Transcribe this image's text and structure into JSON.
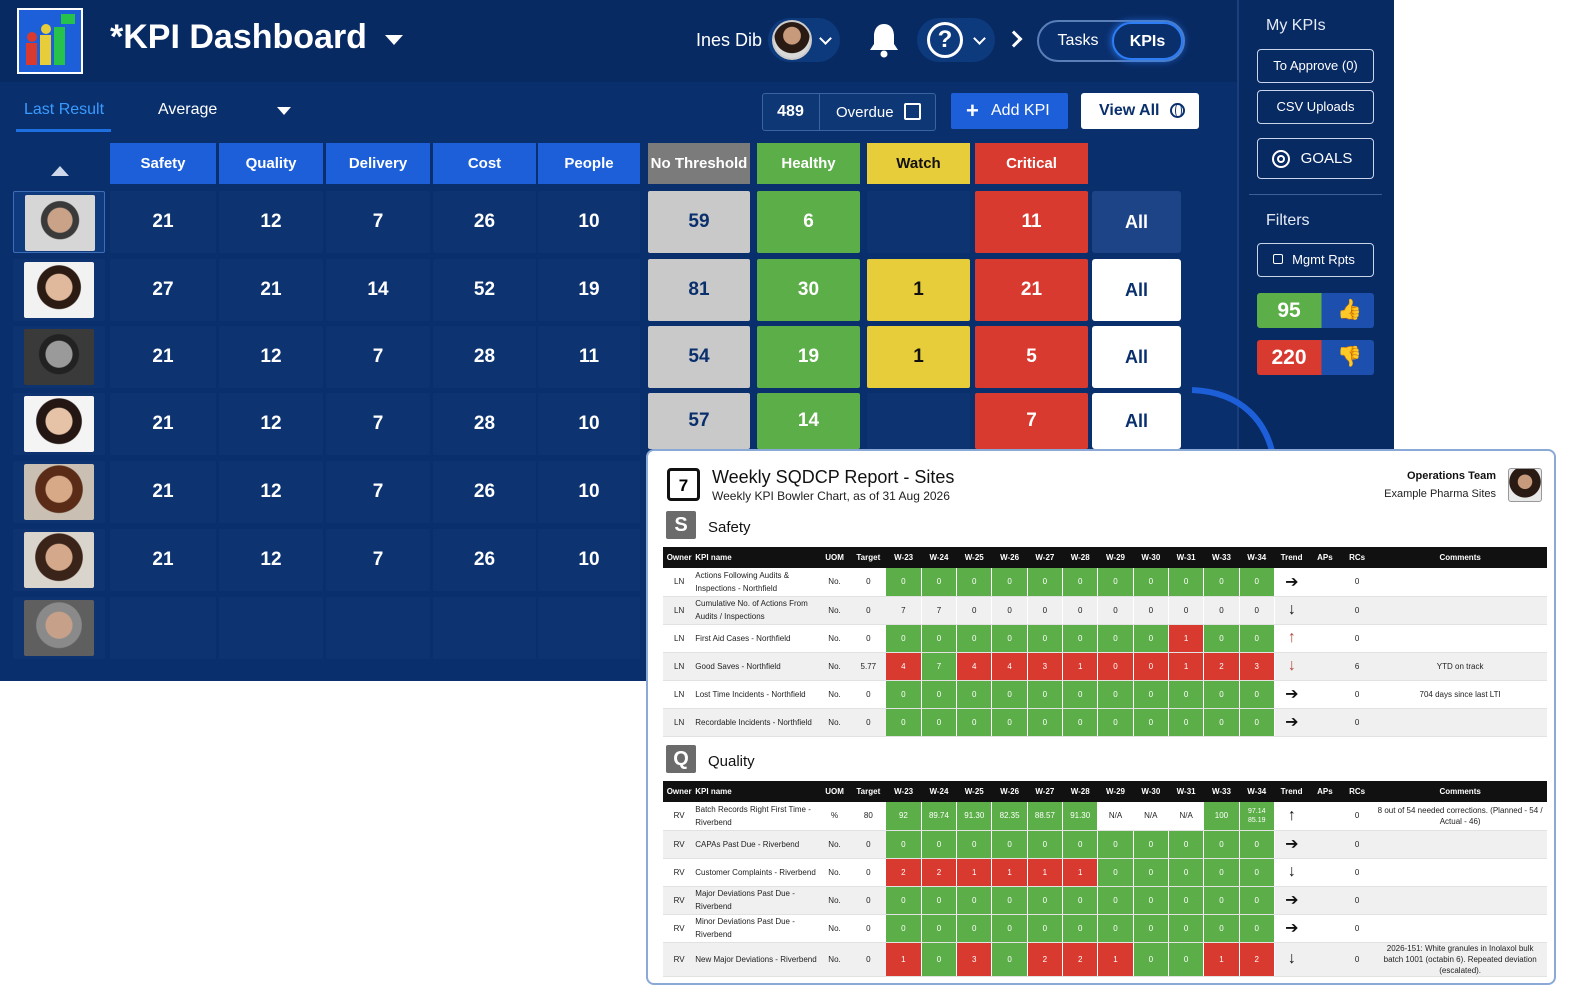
{
  "header": {
    "title": "KPI Dashboard",
    "user_name": "Ines Dib",
    "tab_tasks": "Tasks",
    "tab_kpis": "KPIs"
  },
  "views": {
    "last_result": "Last Result",
    "average": "Average"
  },
  "toolbar": {
    "overdue_count": "489",
    "overdue_label": "Overdue",
    "add_kpi": "Add KPI",
    "view_all": "View All"
  },
  "columns": [
    "Safety",
    "Quality",
    "Delivery",
    "Cost",
    "People",
    "No Threshold",
    "Healthy",
    "Watch",
    "Critical"
  ],
  "colors": {
    "category": "#1d5fd9",
    "no_threshold": "#c9c9c9",
    "healthy": "#5cae48",
    "watch": "#e7cd3a",
    "critical": "#d93a30",
    "navy": "#0a2f6d"
  },
  "rows": [
    {
      "values": [
        "21",
        "12",
        "7",
        "26",
        "10",
        "59",
        "6",
        "",
        "11"
      ],
      "all": "All"
    },
    {
      "values": [
        "27",
        "21",
        "14",
        "52",
        "19",
        "81",
        "30",
        "1",
        "21"
      ],
      "all": "All"
    },
    {
      "values": [
        "21",
        "12",
        "7",
        "28",
        "11",
        "54",
        "19",
        "1",
        "5"
      ],
      "all": "All"
    },
    {
      "values": [
        "21",
        "12",
        "7",
        "28",
        "10",
        "57",
        "14",
        "",
        "7"
      ],
      "all": "All"
    },
    {
      "values": [
        "21",
        "12",
        "7",
        "26",
        "10"
      ]
    },
    {
      "values": [
        "21",
        "12",
        "7",
        "26",
        "10"
      ]
    },
    {
      "values": []
    }
  ],
  "panel": {
    "my_kpis": "My KPIs",
    "to_approve": "To Approve (0)",
    "csv_uploads": "CSV Uploads",
    "goals": "GOALS",
    "filters": "Filters",
    "mgmt_rpts": "Mgmt Rpts",
    "thumbs_up": "95",
    "thumbs_down": "220"
  },
  "report": {
    "calendar_day": "7",
    "title": "Weekly SQDCP Report - Sites",
    "subtitle": "Weekly KPI Bowler Chart, as of 31 Aug 2026",
    "team": "Operations Team",
    "site": "Example Pharma Sites",
    "columns": [
      "Owner",
      "KPI name",
      "UOM",
      "Target",
      "W-23",
      "W-24",
      "W-25",
      "W-26",
      "W-27",
      "W-28",
      "W-29",
      "W-30",
      "W-31",
      "W-33",
      "W-34",
      "Trend",
      "APs",
      "RCs",
      "Comments"
    ],
    "sections": [
      {
        "badge": "S",
        "name": "Safety",
        "rows": [
          {
            "owner": "LN",
            "kpi": "Actions Following Audits & Inspections - Northfield",
            "uom": "No.",
            "target": "0",
            "weeks": [
              "0",
              "0",
              "0",
              "0",
              "0",
              "0",
              "0",
              "0",
              "0",
              "0",
              "0"
            ],
            "colors": [
              "g",
              "g",
              "g",
              "g",
              "g",
              "g",
              "g",
              "g",
              "g",
              "g",
              "g"
            ],
            "trend": "right",
            "aps": "",
            "rcs": "0",
            "comment": ""
          },
          {
            "owner": "LN",
            "kpi": "Cumulative No. of Actions From Audits / Inspections",
            "uom": "No.",
            "target": "0",
            "weeks": [
              "7",
              "7",
              "0",
              "0",
              "0",
              "0",
              "0",
              "0",
              "0",
              "0",
              "0"
            ],
            "colors": [
              "n",
              "n",
              "n",
              "n",
              "n",
              "n",
              "n",
              "n",
              "n",
              "n",
              "n"
            ],
            "trend": "down",
            "aps": "",
            "rcs": "0",
            "comment": ""
          },
          {
            "owner": "LN",
            "kpi": "First Aid Cases - Northfield",
            "uom": "No.",
            "target": "0",
            "weeks": [
              "0",
              "0",
              "0",
              "0",
              "0",
              "0",
              "0",
              "0",
              "1",
              "0",
              "0"
            ],
            "colors": [
              "g",
              "g",
              "g",
              "g",
              "g",
              "g",
              "g",
              "g",
              "r",
              "g",
              "g"
            ],
            "trend": "up-red",
            "aps": "",
            "rcs": "0",
            "comment": ""
          },
          {
            "owner": "LN",
            "kpi": "Good Saves - Northfield",
            "uom": "No.",
            "target": "5.77",
            "weeks": [
              "4",
              "7",
              "4",
              "4",
              "3",
              "1",
              "0",
              "0",
              "1",
              "2",
              "3"
            ],
            "colors": [
              "r",
              "g",
              "r",
              "r",
              "r",
              "r",
              "r",
              "r",
              "r",
              "r",
              "r"
            ],
            "trend": "down-red",
            "aps": "",
            "rcs": "6",
            "comment": "YTD on track"
          },
          {
            "owner": "LN",
            "kpi": "Lost Time Incidents - Northfield",
            "uom": "No.",
            "target": "0",
            "weeks": [
              "0",
              "0",
              "0",
              "0",
              "0",
              "0",
              "0",
              "0",
              "0",
              "0",
              "0"
            ],
            "colors": [
              "g",
              "g",
              "g",
              "g",
              "g",
              "g",
              "g",
              "g",
              "g",
              "g",
              "g"
            ],
            "trend": "right",
            "aps": "",
            "rcs": "0",
            "comment": "704 days since last LTI"
          },
          {
            "owner": "LN",
            "kpi": "Recordable Incidents - Northfield",
            "uom": "No.",
            "target": "0",
            "weeks": [
              "0",
              "0",
              "0",
              "0",
              "0",
              "0",
              "0",
              "0",
              "0",
              "0",
              "0"
            ],
            "colors": [
              "g",
              "g",
              "g",
              "g",
              "g",
              "g",
              "g",
              "g",
              "g",
              "g",
              "g"
            ],
            "trend": "right",
            "aps": "",
            "rcs": "0",
            "comment": ""
          }
        ]
      },
      {
        "badge": "Q",
        "name": "Quality",
        "rows": [
          {
            "owner": "RV",
            "kpi": "Batch Records Right First Time - Riverbend",
            "uom": "%",
            "target": "80",
            "weeks": [
              "92",
              "89.74",
              "91.30",
              "82.35",
              "88.57",
              "91.30",
              "N/A",
              "N/A",
              "N/A",
              "100",
              "97.14 85.19"
            ],
            "colors": [
              "g",
              "g",
              "g",
              "g",
              "g",
              "g",
              "n",
              "n",
              "n",
              "g",
              "g"
            ],
            "trend": "up",
            "aps": "",
            "rcs": "0",
            "comment": "8 out of 54 needed corrections. (Planned - 54 / Actual - 46)"
          },
          {
            "owner": "RV",
            "kpi": "CAPAs Past Due - Riverbend",
            "uom": "No.",
            "target": "0",
            "weeks": [
              "0",
              "0",
              "0",
              "0",
              "0",
              "0",
              "0",
              "0",
              "0",
              "0",
              "0"
            ],
            "colors": [
              "g",
              "g",
              "g",
              "g",
              "g",
              "g",
              "g",
              "g",
              "g",
              "g",
              "g"
            ],
            "trend": "right",
            "aps": "",
            "rcs": "0",
            "comment": ""
          },
          {
            "owner": "RV",
            "kpi": "Customer Complaints - Riverbend",
            "uom": "No.",
            "target": "0",
            "weeks": [
              "2",
              "2",
              "1",
              "1",
              "1",
              "1",
              "0",
              "0",
              "0",
              "0",
              "0"
            ],
            "colors": [
              "r",
              "r",
              "r",
              "r",
              "r",
              "r",
              "g",
              "g",
              "g",
              "g",
              "g"
            ],
            "trend": "down",
            "aps": "",
            "rcs": "0",
            "comment": ""
          },
          {
            "owner": "RV",
            "kpi": "Major Deviations Past Due - Riverbend",
            "uom": "No.",
            "target": "0",
            "weeks": [
              "0",
              "0",
              "0",
              "0",
              "0",
              "0",
              "0",
              "0",
              "0",
              "0",
              "0"
            ],
            "colors": [
              "g",
              "g",
              "g",
              "g",
              "g",
              "g",
              "g",
              "g",
              "g",
              "g",
              "g"
            ],
            "trend": "right",
            "aps": "",
            "rcs": "0",
            "comment": ""
          },
          {
            "owner": "RV",
            "kpi": "Minor Deviations Past Due - Riverbend",
            "uom": "No.",
            "target": "0",
            "weeks": [
              "0",
              "0",
              "0",
              "0",
              "0",
              "0",
              "0",
              "0",
              "0",
              "0",
              "0"
            ],
            "colors": [
              "g",
              "g",
              "g",
              "g",
              "g",
              "g",
              "g",
              "g",
              "g",
              "g",
              "g"
            ],
            "trend": "right",
            "aps": "",
            "rcs": "0",
            "comment": ""
          },
          {
            "owner": "RV",
            "kpi": "New Major Deviations - Riverbend",
            "uom": "No.",
            "target": "0",
            "weeks": [
              "1",
              "0",
              "3",
              "0",
              "2",
              "2",
              "1",
              "0",
              "0",
              "1",
              "2"
            ],
            "colors": [
              "r",
              "g",
              "r",
              "g",
              "r",
              "r",
              "r",
              "g",
              "g",
              "r",
              "r"
            ],
            "trend": "down",
            "aps": "",
            "rcs": "0",
            "comment": "2026-151: White granules in Inolaxol bulk batch 1001 (octabin 6). Repeated deviation (escalated)."
          }
        ]
      }
    ]
  }
}
